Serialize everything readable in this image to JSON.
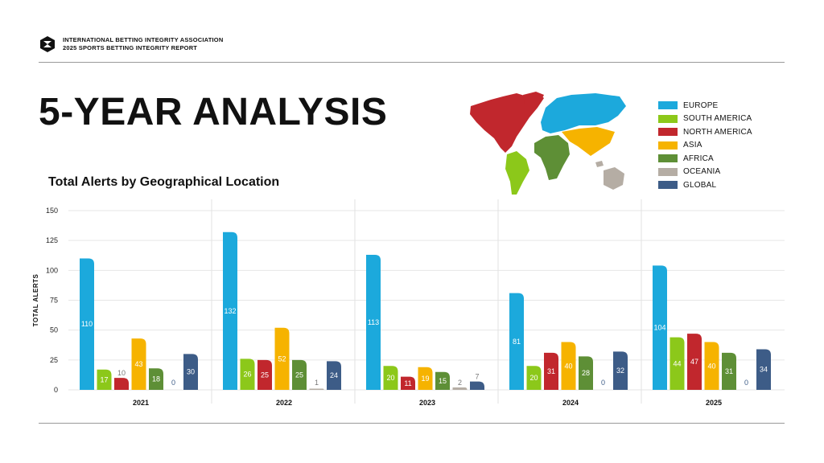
{
  "header": {
    "org": "INTERNATIONAL BETTING INTEGRITY ASSOCIATION",
    "report": "2025 SPORTS BETTING INTEGRITY REPORT"
  },
  "title": "5-YEAR ANALYSIS",
  "subtitle": "Total Alerts by Geographical Location",
  "legend": [
    {
      "label": "EUROPE",
      "color": "#1CA9DC"
    },
    {
      "label": "SOUTH AMERICA",
      "color": "#8CC81A"
    },
    {
      "label": "NORTH AMERICA",
      "color": "#C1272D"
    },
    {
      "label": "ASIA",
      "color": "#F6B300"
    },
    {
      "label": "AFRICA",
      "color": "#5E8F36"
    },
    {
      "label": "OCEANIA",
      "color": "#B5ADA4"
    },
    {
      "label": "GLOBAL",
      "color": "#3D5C87"
    }
  ],
  "chart_data": {
    "type": "bar",
    "categories": [
      "2021",
      "2022",
      "2023",
      "2024",
      "2025"
    ],
    "ylabel": "TOTAL ALERTS",
    "ylim": [
      0,
      150
    ],
    "yticks": [
      0,
      25,
      50,
      75,
      100,
      125,
      150
    ],
    "grid": true,
    "series": [
      {
        "name": "EUROPE",
        "color": "#1CA9DC",
        "values": [
          110,
          132,
          113,
          81,
          104
        ]
      },
      {
        "name": "SOUTH AMERICA",
        "color": "#8CC81A",
        "values": [
          17,
          26,
          20,
          20,
          44
        ]
      },
      {
        "name": "NORTH AMERICA",
        "color": "#C1272D",
        "values": [
          10,
          25,
          11,
          31,
          47
        ]
      },
      {
        "name": "ASIA",
        "color": "#F6B300",
        "values": [
          43,
          52,
          19,
          40,
          40
        ]
      },
      {
        "name": "AFRICA",
        "color": "#5E8F36",
        "values": [
          18,
          25,
          15,
          28,
          31
        ]
      },
      {
        "name": "OCEANIA",
        "color": "#B5ADA4",
        "values": [
          0,
          1,
          2,
          0,
          0
        ]
      },
      {
        "name": "GLOBAL",
        "color": "#3D5C87",
        "values": [
          30,
          24,
          7,
          32,
          34
        ]
      }
    ]
  }
}
